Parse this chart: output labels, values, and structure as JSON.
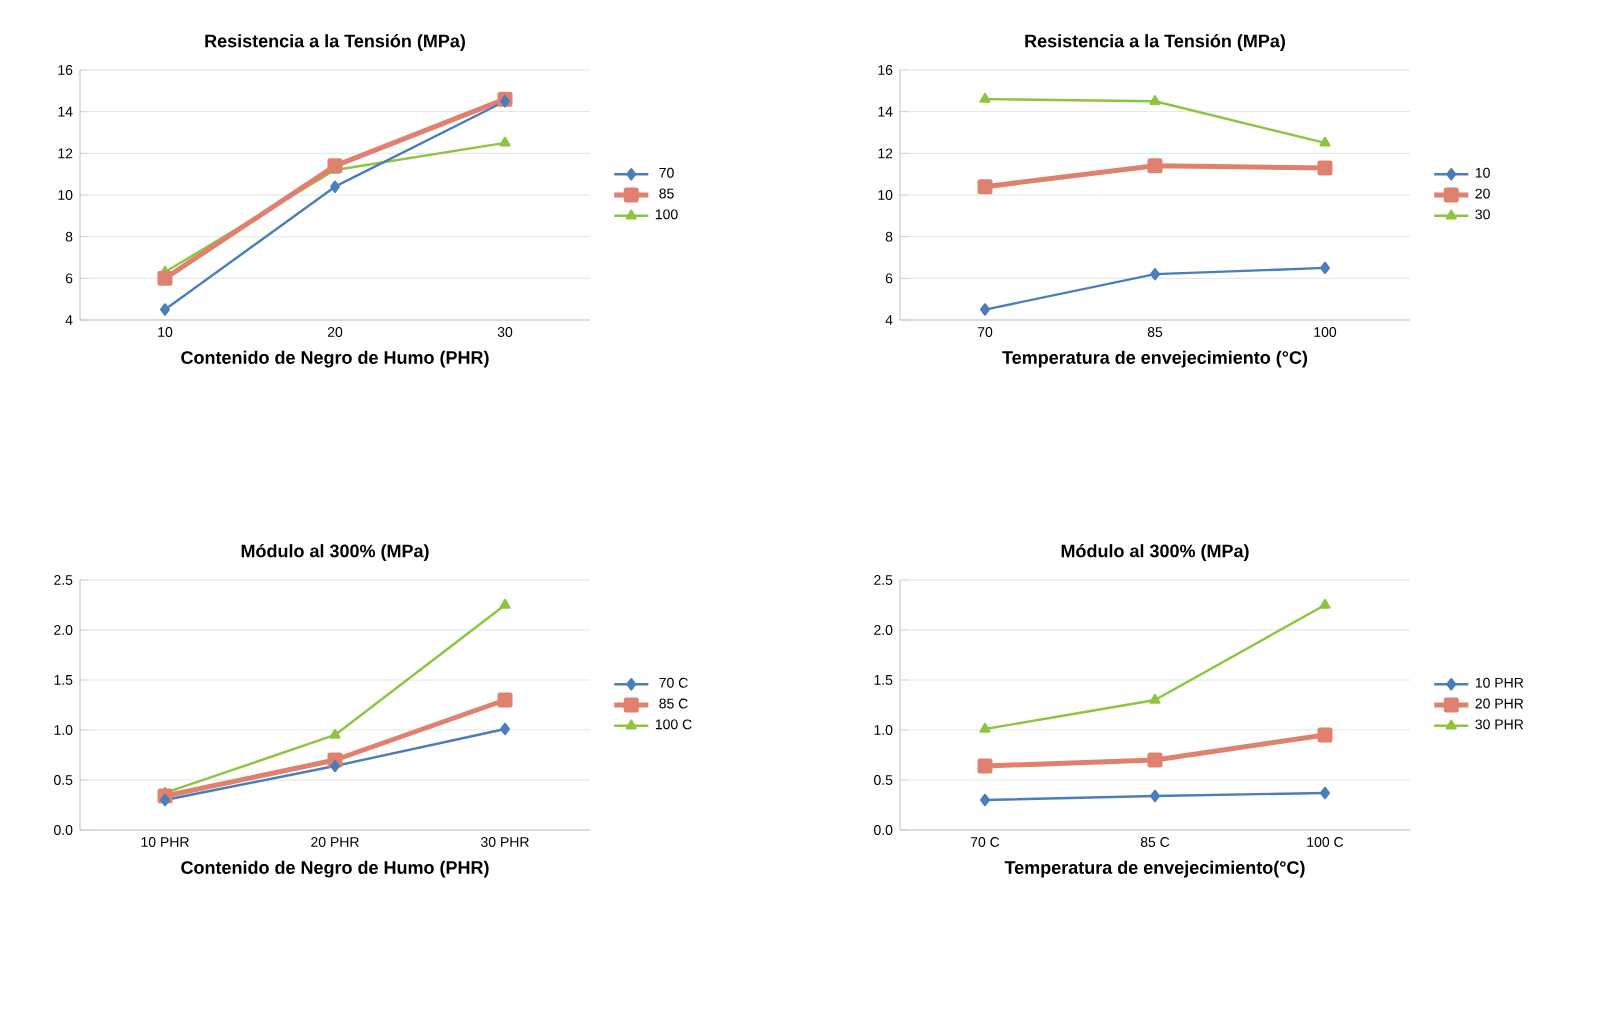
{
  "chart_data": [
    {
      "type": "line",
      "title": "Resistencia a la Tensión (MPa)",
      "xlabel": "Contenido de Negro de Humo (PHR)",
      "categories": [
        "10",
        "20",
        "30"
      ],
      "ylim": [
        4,
        16
      ],
      "yticks": [
        4,
        6,
        8,
        10,
        12,
        14,
        16
      ],
      "grid": "y",
      "legend": "right",
      "series": [
        {
          "name": "70",
          "color": "#4a7ebb",
          "marker": "diamond",
          "values": [
            4.5,
            10.4,
            14.5
          ]
        },
        {
          "name": "85",
          "color": "#e0806f",
          "marker": "square",
          "values": [
            6.0,
            11.4,
            14.6
          ]
        },
        {
          "name": "100",
          "color": "#8cc63f",
          "marker": "triangle",
          "values": [
            6.3,
            11.2,
            12.5
          ]
        }
      ]
    },
    {
      "type": "line",
      "title": "Resistencia a la Tensión (MPa)",
      "xlabel": "Temperatura de envejecimiento (°C)",
      "categories": [
        "70",
        "85",
        "100"
      ],
      "ylim": [
        4,
        16
      ],
      "yticks": [
        4,
        6,
        8,
        10,
        12,
        14,
        16
      ],
      "grid": "y",
      "legend": "right",
      "series": [
        {
          "name": "10",
          "color": "#4a7ebb",
          "marker": "diamond",
          "values": [
            4.5,
            6.2,
            6.5
          ]
        },
        {
          "name": "20",
          "color": "#e0806f",
          "marker": "square",
          "values": [
            10.4,
            11.4,
            11.3
          ]
        },
        {
          "name": "30",
          "color": "#8cc63f",
          "marker": "triangle",
          "values": [
            14.6,
            14.5,
            12.5
          ]
        }
      ]
    },
    {
      "type": "line",
      "title": "Módulo al 300% (MPa)",
      "xlabel": "Contenido de Negro de Humo (PHR)",
      "categories": [
        "10 PHR",
        "20 PHR",
        "30 PHR"
      ],
      "ylim": [
        0,
        2.5
      ],
      "yticks": [
        {
          "value": 0,
          "label": "0.0"
        },
        {
          "value": 0.5,
          "label": "0.5"
        },
        {
          "value": 1,
          "label": "1.0"
        },
        {
          "value": 1.5,
          "label": "1.5"
        },
        {
          "value": 2,
          "label": "2.0"
        },
        {
          "value": 2.5,
          "label": "2.5"
        }
      ],
      "grid": "y",
      "legend": "right",
      "series": [
        {
          "name": "70 C",
          "color": "#4a7ebb",
          "marker": "diamond",
          "values": [
            0.3,
            0.64,
            1.01
          ]
        },
        {
          "name": "85 C",
          "color": "#e0806f",
          "marker": "square",
          "values": [
            0.34,
            0.7,
            1.3
          ]
        },
        {
          "name": "100 C",
          "color": "#8cc63f",
          "marker": "triangle",
          "values": [
            0.37,
            0.95,
            2.25
          ]
        }
      ]
    },
    {
      "type": "line",
      "title": "Módulo al 300% (MPa)",
      "xlabel": "Temperatura de envejecimiento(°C)",
      "categories": [
        "70 C",
        "85 C",
        "100 C"
      ],
      "ylim": [
        0,
        2.5
      ],
      "yticks": [
        {
          "value": 0,
          "label": "0.0"
        },
        {
          "value": 0.5,
          "label": "0.5"
        },
        {
          "value": 1,
          "label": "1.0"
        },
        {
          "value": 1.5,
          "label": "1.5"
        },
        {
          "value": 2,
          "label": "2.0"
        },
        {
          "value": 2.5,
          "label": "2.5"
        }
      ],
      "grid": "y",
      "legend": "right",
      "series": [
        {
          "name": "10 PHR",
          "color": "#4a7ebb",
          "marker": "diamond",
          "values": [
            0.3,
            0.34,
            0.37
          ]
        },
        {
          "name": "20 PHR",
          "color": "#e0806f",
          "marker": "square",
          "values": [
            0.64,
            0.7,
            0.95
          ]
        },
        {
          "name": "30 PHR",
          "color": "#8cc63f",
          "marker": "triangle",
          "values": [
            1.01,
            1.3,
            2.25
          ]
        }
      ]
    }
  ]
}
